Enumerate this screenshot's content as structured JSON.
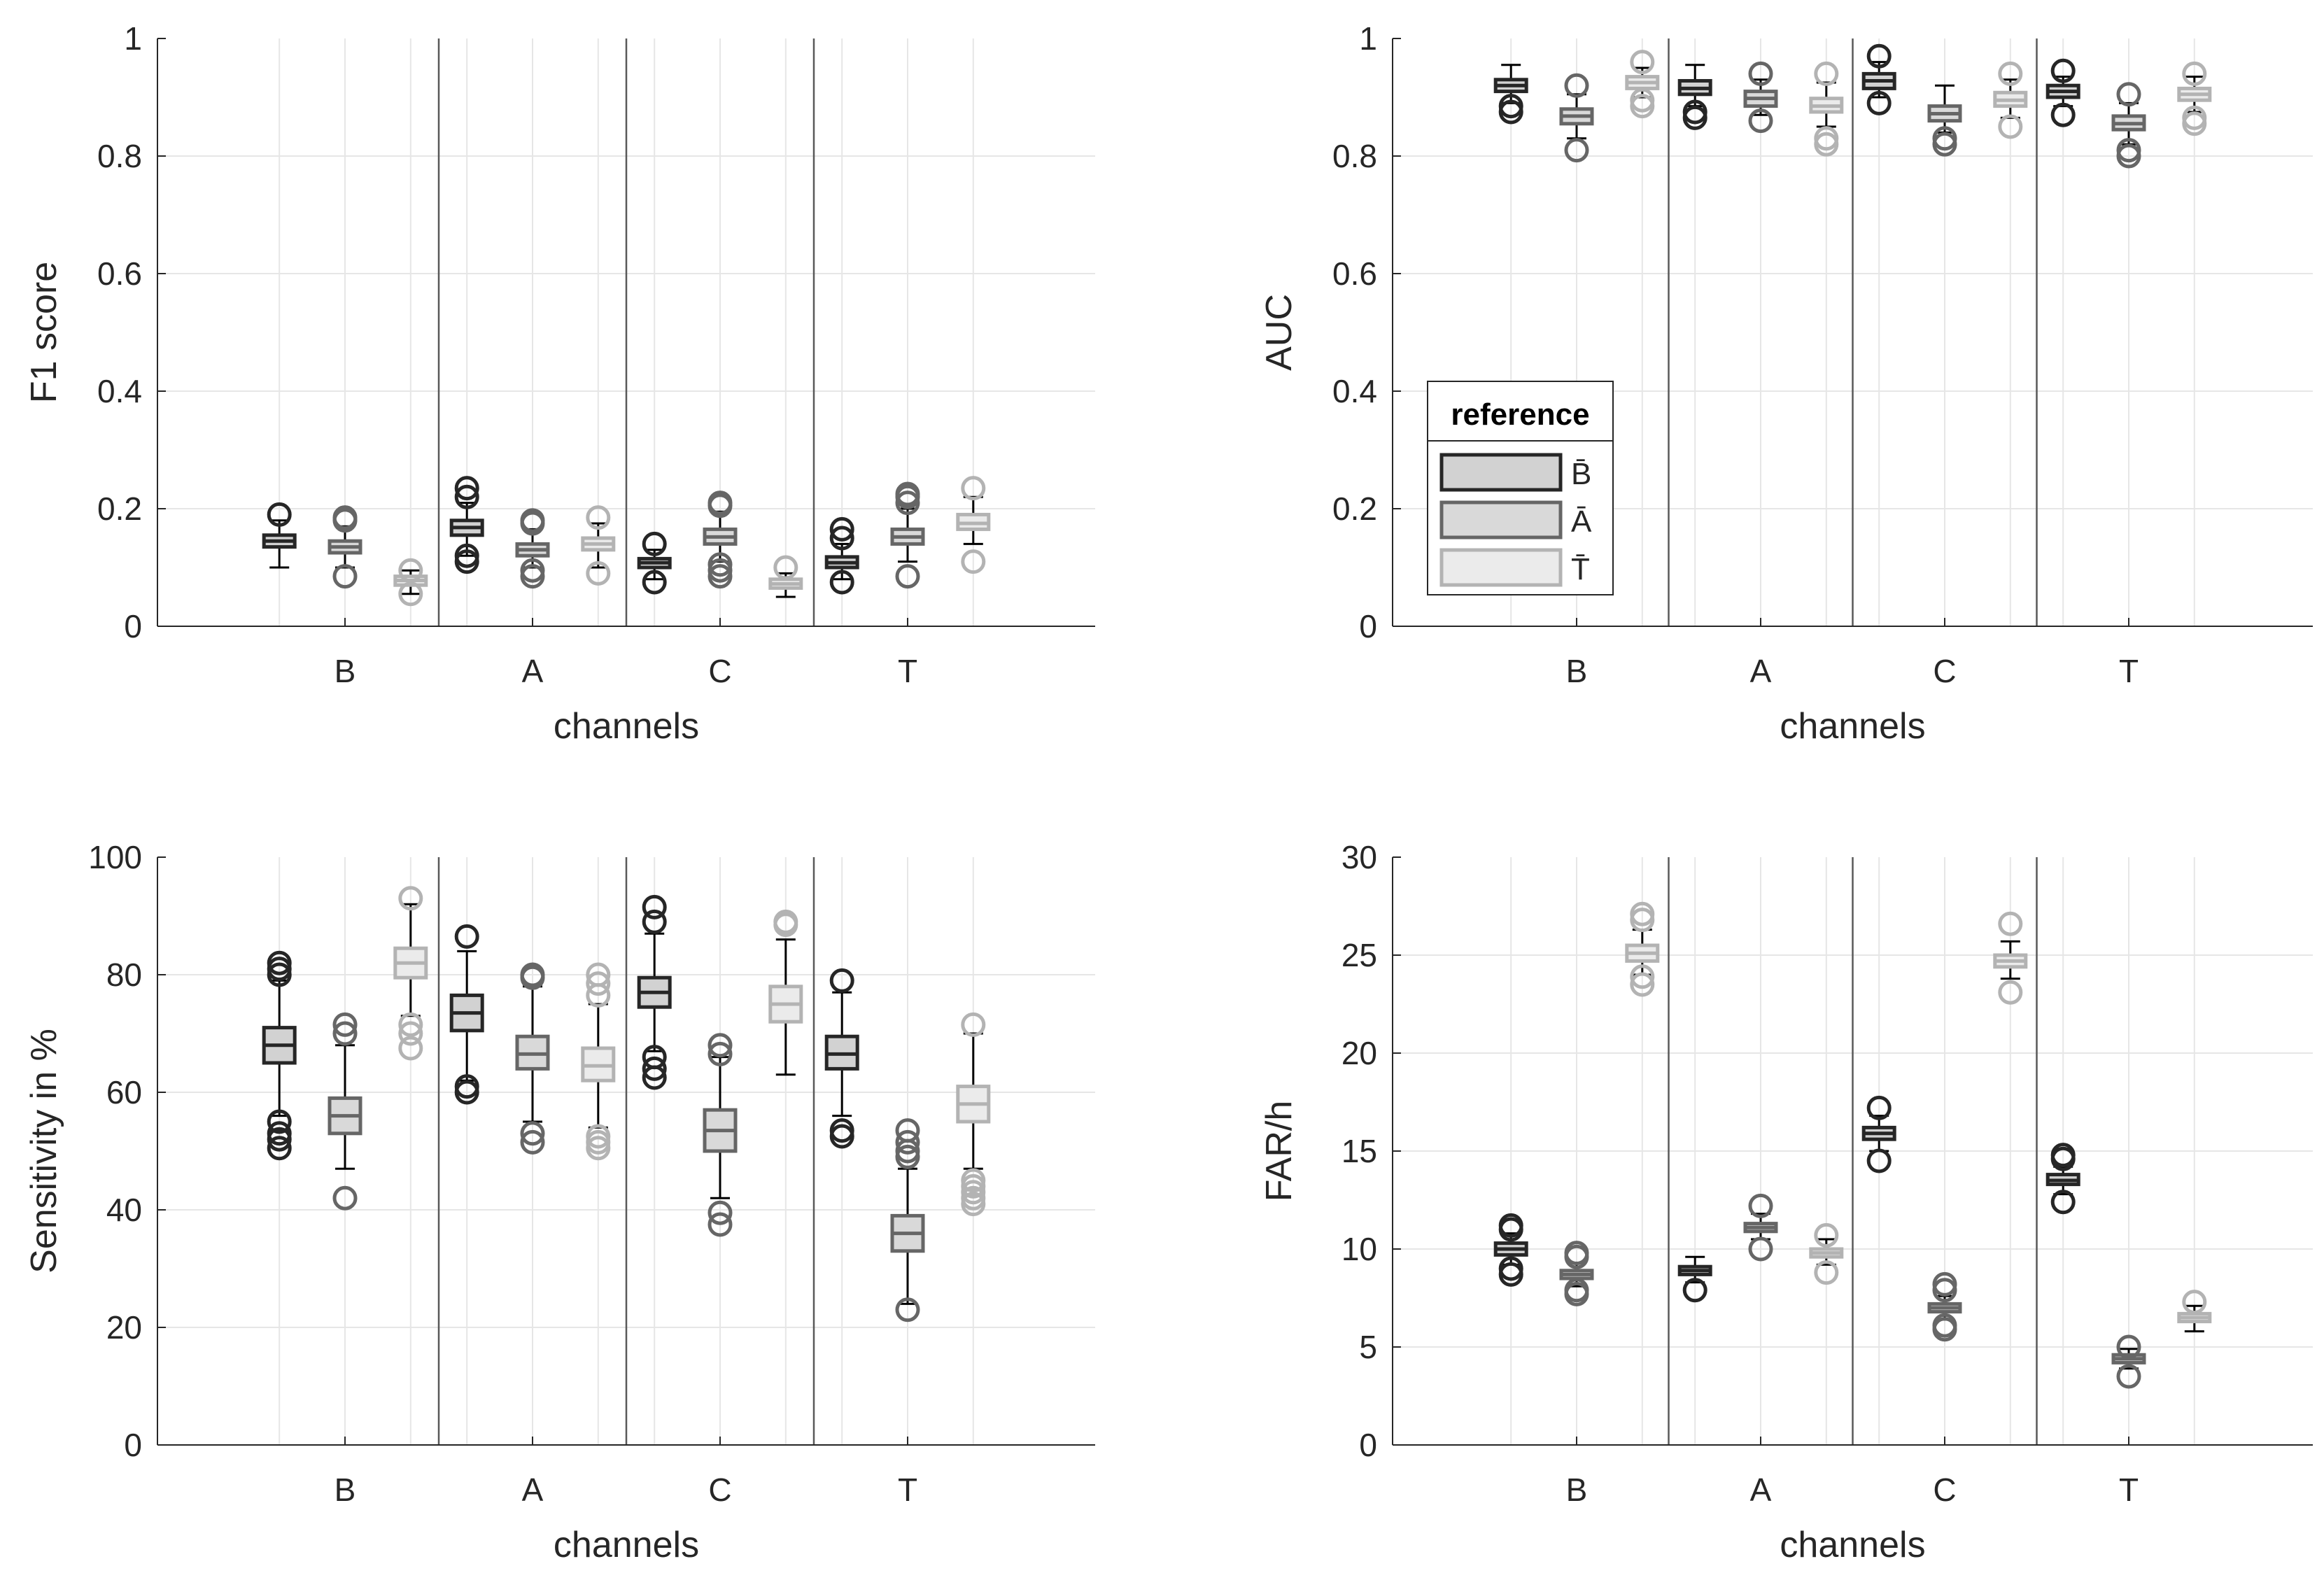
{
  "chart_data": [
    {
      "type": "box",
      "id": "f1",
      "ylabel": "F1 score",
      "xlabel": "channels",
      "ylim": [
        0,
        1
      ],
      "yticks": [
        "0",
        "0.2",
        "0.4",
        "0.6",
        "0.8",
        "1"
      ],
      "categories": [
        "B",
        "A",
        "C",
        "T"
      ],
      "series_names": [
        "B̄",
        "Ā",
        "T̄"
      ],
      "series_colors": [
        "#262626",
        "#666666",
        "#b3b3b3"
      ],
      "grid": true,
      "boxes": [
        [
          {
            "min": 0.1,
            "q1": 0.135,
            "median": 0.145,
            "q3": 0.155,
            "max": 0.18,
            "outliers": [
              0.19
            ]
          },
          {
            "min": 0.1,
            "q1": 0.125,
            "median": 0.135,
            "q3": 0.145,
            "max": 0.17,
            "outliers": [
              0.085,
              0.18,
              0.185
            ]
          },
          {
            "min": 0.055,
            "q1": 0.07,
            "median": 0.078,
            "q3": 0.085,
            "max": 0.095,
            "outliers": [
              0.055,
              0.095
            ]
          }
        ],
        [
          {
            "min": 0.12,
            "q1": 0.155,
            "median": 0.168,
            "q3": 0.18,
            "max": 0.21,
            "outliers": [
              0.11,
              0.12,
              0.22,
              0.235
            ]
          },
          {
            "min": 0.1,
            "q1": 0.12,
            "median": 0.13,
            "q3": 0.14,
            "max": 0.165,
            "outliers": [
              0.085,
              0.095,
              0.175,
              0.18
            ]
          },
          {
            "min": 0.1,
            "q1": 0.13,
            "median": 0.14,
            "q3": 0.15,
            "max": 0.175,
            "outliers": [
              0.09,
              0.185
            ]
          }
        ],
        [
          {
            "min": 0.08,
            "q1": 0.1,
            "median": 0.108,
            "q3": 0.115,
            "max": 0.13,
            "outliers": [
              0.075,
              0.14
            ]
          },
          {
            "min": 0.11,
            "q1": 0.14,
            "median": 0.152,
            "q3": 0.165,
            "max": 0.195,
            "outliers": [
              0.085,
              0.095,
              0.105,
              0.205,
              0.21
            ]
          },
          {
            "min": 0.05,
            "q1": 0.065,
            "median": 0.072,
            "q3": 0.08,
            "max": 0.09,
            "outliers": [
              0.1
            ]
          }
        ],
        [
          {
            "min": 0.08,
            "q1": 0.1,
            "median": 0.108,
            "q3": 0.118,
            "max": 0.14,
            "outliers": [
              0.075,
              0.15,
              0.165
            ]
          },
          {
            "min": 0.11,
            "q1": 0.14,
            "median": 0.152,
            "q3": 0.165,
            "max": 0.2,
            "outliers": [
              0.085,
              0.21,
              0.22,
              0.225
            ]
          },
          {
            "min": 0.14,
            "q1": 0.165,
            "median": 0.175,
            "q3": 0.19,
            "max": 0.22,
            "outliers": [
              0.11,
              0.235
            ]
          }
        ]
      ]
    },
    {
      "type": "box",
      "id": "auc",
      "ylabel": "AUC",
      "xlabel": "channels",
      "ylim": [
        0,
        1
      ],
      "yticks": [
        "0",
        "0.2",
        "0.4",
        "0.6",
        "0.8",
        "1"
      ],
      "categories": [
        "B",
        "A",
        "C",
        "T"
      ],
      "series_names": [
        "B̄",
        "Ā",
        "T̄"
      ],
      "series_colors": [
        "#262626",
        "#666666",
        "#b3b3b3"
      ],
      "grid": true,
      "legend": {
        "title": "reference",
        "labels": [
          "B̄",
          "Ā",
          "T̄"
        ],
        "location": "bottom-left"
      },
      "boxes": [
        [
          {
            "min": 0.89,
            "q1": 0.91,
            "median": 0.92,
            "q3": 0.93,
            "max": 0.955,
            "outliers": [
              0.875,
              0.885
            ]
          },
          {
            "min": 0.83,
            "q1": 0.855,
            "median": 0.868,
            "q3": 0.88,
            "max": 0.905,
            "outliers": [
              0.81,
              0.92
            ]
          },
          {
            "min": 0.9,
            "q1": 0.915,
            "median": 0.925,
            "q3": 0.935,
            "max": 0.95,
            "outliers": [
              0.885,
              0.895,
              0.96
            ]
          }
        ],
        [
          {
            "min": 0.885,
            "q1": 0.905,
            "median": 0.915,
            "q3": 0.928,
            "max": 0.955,
            "outliers": [
              0.865,
              0.875
            ]
          },
          {
            "min": 0.87,
            "q1": 0.885,
            "median": 0.898,
            "q3": 0.91,
            "max": 0.93,
            "outliers": [
              0.86,
              0.94
            ]
          },
          {
            "min": 0.85,
            "q1": 0.875,
            "median": 0.885,
            "q3": 0.898,
            "max": 0.925,
            "outliers": [
              0.82,
              0.83,
              0.94
            ]
          }
        ],
        [
          {
            "min": 0.9,
            "q1": 0.915,
            "median": 0.928,
            "q3": 0.94,
            "max": 0.96,
            "outliers": [
              0.89,
              0.97
            ]
          },
          {
            "min": 0.84,
            "q1": 0.86,
            "median": 0.872,
            "q3": 0.885,
            "max": 0.92,
            "outliers": [
              0.82,
              0.83
            ]
          },
          {
            "min": 0.865,
            "q1": 0.885,
            "median": 0.895,
            "q3": 0.908,
            "max": 0.93,
            "outliers": [
              0.85,
              0.94
            ]
          }
        ],
        [
          {
            "min": 0.885,
            "q1": 0.9,
            "median": 0.91,
            "q3": 0.92,
            "max": 0.935,
            "outliers": [
              0.87,
              0.945
            ]
          },
          {
            "min": 0.82,
            "q1": 0.845,
            "median": 0.855,
            "q3": 0.868,
            "max": 0.89,
            "outliers": [
              0.8,
              0.81,
              0.905
            ]
          },
          {
            "min": 0.875,
            "q1": 0.895,
            "median": 0.905,
            "q3": 0.915,
            "max": 0.935,
            "outliers": [
              0.855,
              0.865,
              0.94
            ]
          }
        ]
      ]
    },
    {
      "type": "box",
      "id": "sens",
      "ylabel": "Sensitivity in %",
      "xlabel": "channels",
      "ylim": [
        0,
        100
      ],
      "yticks": [
        "0",
        "20",
        "40",
        "60",
        "80",
        "100"
      ],
      "categories": [
        "B",
        "A",
        "C",
        "T"
      ],
      "series_names": [
        "B̄",
        "Ā",
        "T̄"
      ],
      "series_colors": [
        "#262626",
        "#666666",
        "#b3b3b3"
      ],
      "grid": true,
      "boxes": [
        [
          {
            "min": 56,
            "q1": 65,
            "median": 68,
            "q3": 71,
            "max": 79,
            "outliers": [
              50.5,
              52,
              53,
              55,
              80,
              81,
              82
            ]
          },
          {
            "min": 47,
            "q1": 53,
            "median": 56,
            "q3": 59,
            "max": 68,
            "outliers": [
              42,
              70,
              71.5
            ]
          },
          {
            "min": 73,
            "q1": 79.5,
            "median": 82,
            "q3": 84.5,
            "max": 92,
            "outliers": [
              67.5,
              70,
              71.5,
              93
            ]
          }
        ],
        [
          {
            "min": 62,
            "q1": 70.5,
            "median": 73.5,
            "q3": 76.5,
            "max": 84,
            "outliers": [
              60,
              61,
              86.5
            ]
          },
          {
            "min": 55,
            "q1": 64,
            "median": 66.5,
            "q3": 69.5,
            "max": 78,
            "outliers": [
              51.5,
              53,
              79.5,
              80
            ]
          },
          {
            "min": 54,
            "q1": 62,
            "median": 64.5,
            "q3": 67.5,
            "max": 75,
            "outliers": [
              50.5,
              51.5,
              52.5,
              76.5,
              78.5,
              80
            ]
          }
        ],
        [
          {
            "min": 67,
            "q1": 74.5,
            "median": 77,
            "q3": 79.5,
            "max": 87,
            "outliers": [
              62.5,
              64,
              66,
              89,
              91.5
            ]
          },
          {
            "min": 42,
            "q1": 50,
            "median": 53.5,
            "q3": 57,
            "max": 66,
            "outliers": [
              37.5,
              39.5,
              66.5,
              68
            ]
          },
          {
            "min": 63,
            "q1": 72,
            "median": 75,
            "q3": 78,
            "max": 86,
            "outliers": [
              88.5,
              89
            ]
          }
        ],
        [
          {
            "min": 56,
            "q1": 64,
            "median": 66.5,
            "q3": 69.5,
            "max": 77,
            "outliers": [
              52.5,
              53.5,
              79
            ]
          },
          {
            "min": 24,
            "q1": 33,
            "median": 36,
            "q3": 39,
            "max": 47,
            "outliers": [
              23,
              49,
              50,
              51.5,
              53.5
            ]
          },
          {
            "min": 47,
            "q1": 55,
            "median": 58,
            "q3": 61,
            "max": 70,
            "outliers": [
              41,
              42,
              43,
              44,
              45,
              71.5
            ]
          }
        ]
      ]
    },
    {
      "type": "box",
      "id": "far",
      "ylabel": "FAR/h",
      "xlabel": "channels",
      "ylim": [
        0,
        30
      ],
      "yticks": [
        "0",
        "5",
        "10",
        "15",
        "20",
        "25",
        "30"
      ],
      "categories": [
        "B",
        "A",
        "C",
        "T"
      ],
      "series_names": [
        "B̄",
        "Ā",
        "T̄"
      ],
      "series_colors": [
        "#262626",
        "#666666",
        "#b3b3b3"
      ],
      "grid": true,
      "boxes": [
        [
          {
            "min": 9.2,
            "q1": 9.7,
            "median": 10.0,
            "q3": 10.3,
            "max": 10.8,
            "outliers": [
              8.7,
              9.0,
              11.0,
              11.2
            ]
          },
          {
            "min": 8.1,
            "q1": 8.5,
            "median": 8.7,
            "q3": 8.9,
            "max": 9.3,
            "outliers": [
              7.7,
              7.9,
              9.6,
              9.8
            ]
          },
          {
            "min": 24.0,
            "q1": 24.7,
            "median": 25.1,
            "q3": 25.5,
            "max": 26.3,
            "outliers": [
              23.5,
              23.9,
              26.8,
              27.1
            ]
          }
        ],
        [
          {
            "min": 8.3,
            "q1": 8.7,
            "median": 8.9,
            "q3": 9.1,
            "max": 9.6,
            "outliers": [
              7.9
            ]
          },
          {
            "min": 10.5,
            "q1": 10.9,
            "median": 11.1,
            "q3": 11.3,
            "max": 11.8,
            "outliers": [
              10.0,
              12.2
            ]
          },
          {
            "min": 9.2,
            "q1": 9.6,
            "median": 9.8,
            "q3": 10.0,
            "max": 10.5,
            "outliers": [
              8.8,
              10.7
            ]
          }
        ],
        [
          {
            "min": 15.0,
            "q1": 15.6,
            "median": 15.9,
            "q3": 16.2,
            "max": 16.8,
            "outliers": [
              14.5,
              17.2
            ]
          },
          {
            "min": 6.4,
            "q1": 6.8,
            "median": 7.0,
            "q3": 7.2,
            "max": 7.6,
            "outliers": [
              5.9,
              6.1,
              7.9,
              8.2
            ]
          },
          {
            "min": 23.8,
            "q1": 24.4,
            "median": 24.7,
            "q3": 25.0,
            "max": 25.7,
            "outliers": [
              23.1,
              26.6
            ]
          }
        ],
        [
          {
            "min": 12.8,
            "q1": 13.3,
            "median": 13.5,
            "q3": 13.8,
            "max": 14.2,
            "outliers": [
              12.4,
              14.6,
              14.8
            ]
          },
          {
            "min": 3.9,
            "q1": 4.2,
            "median": 4.4,
            "q3": 4.6,
            "max": 4.9,
            "outliers": [
              3.5,
              5.0
            ]
          },
          {
            "min": 5.8,
            "q1": 6.3,
            "median": 6.5,
            "q3": 6.7,
            "max": 7.1,
            "outliers": [
              7.3
            ]
          }
        ]
      ]
    }
  ]
}
